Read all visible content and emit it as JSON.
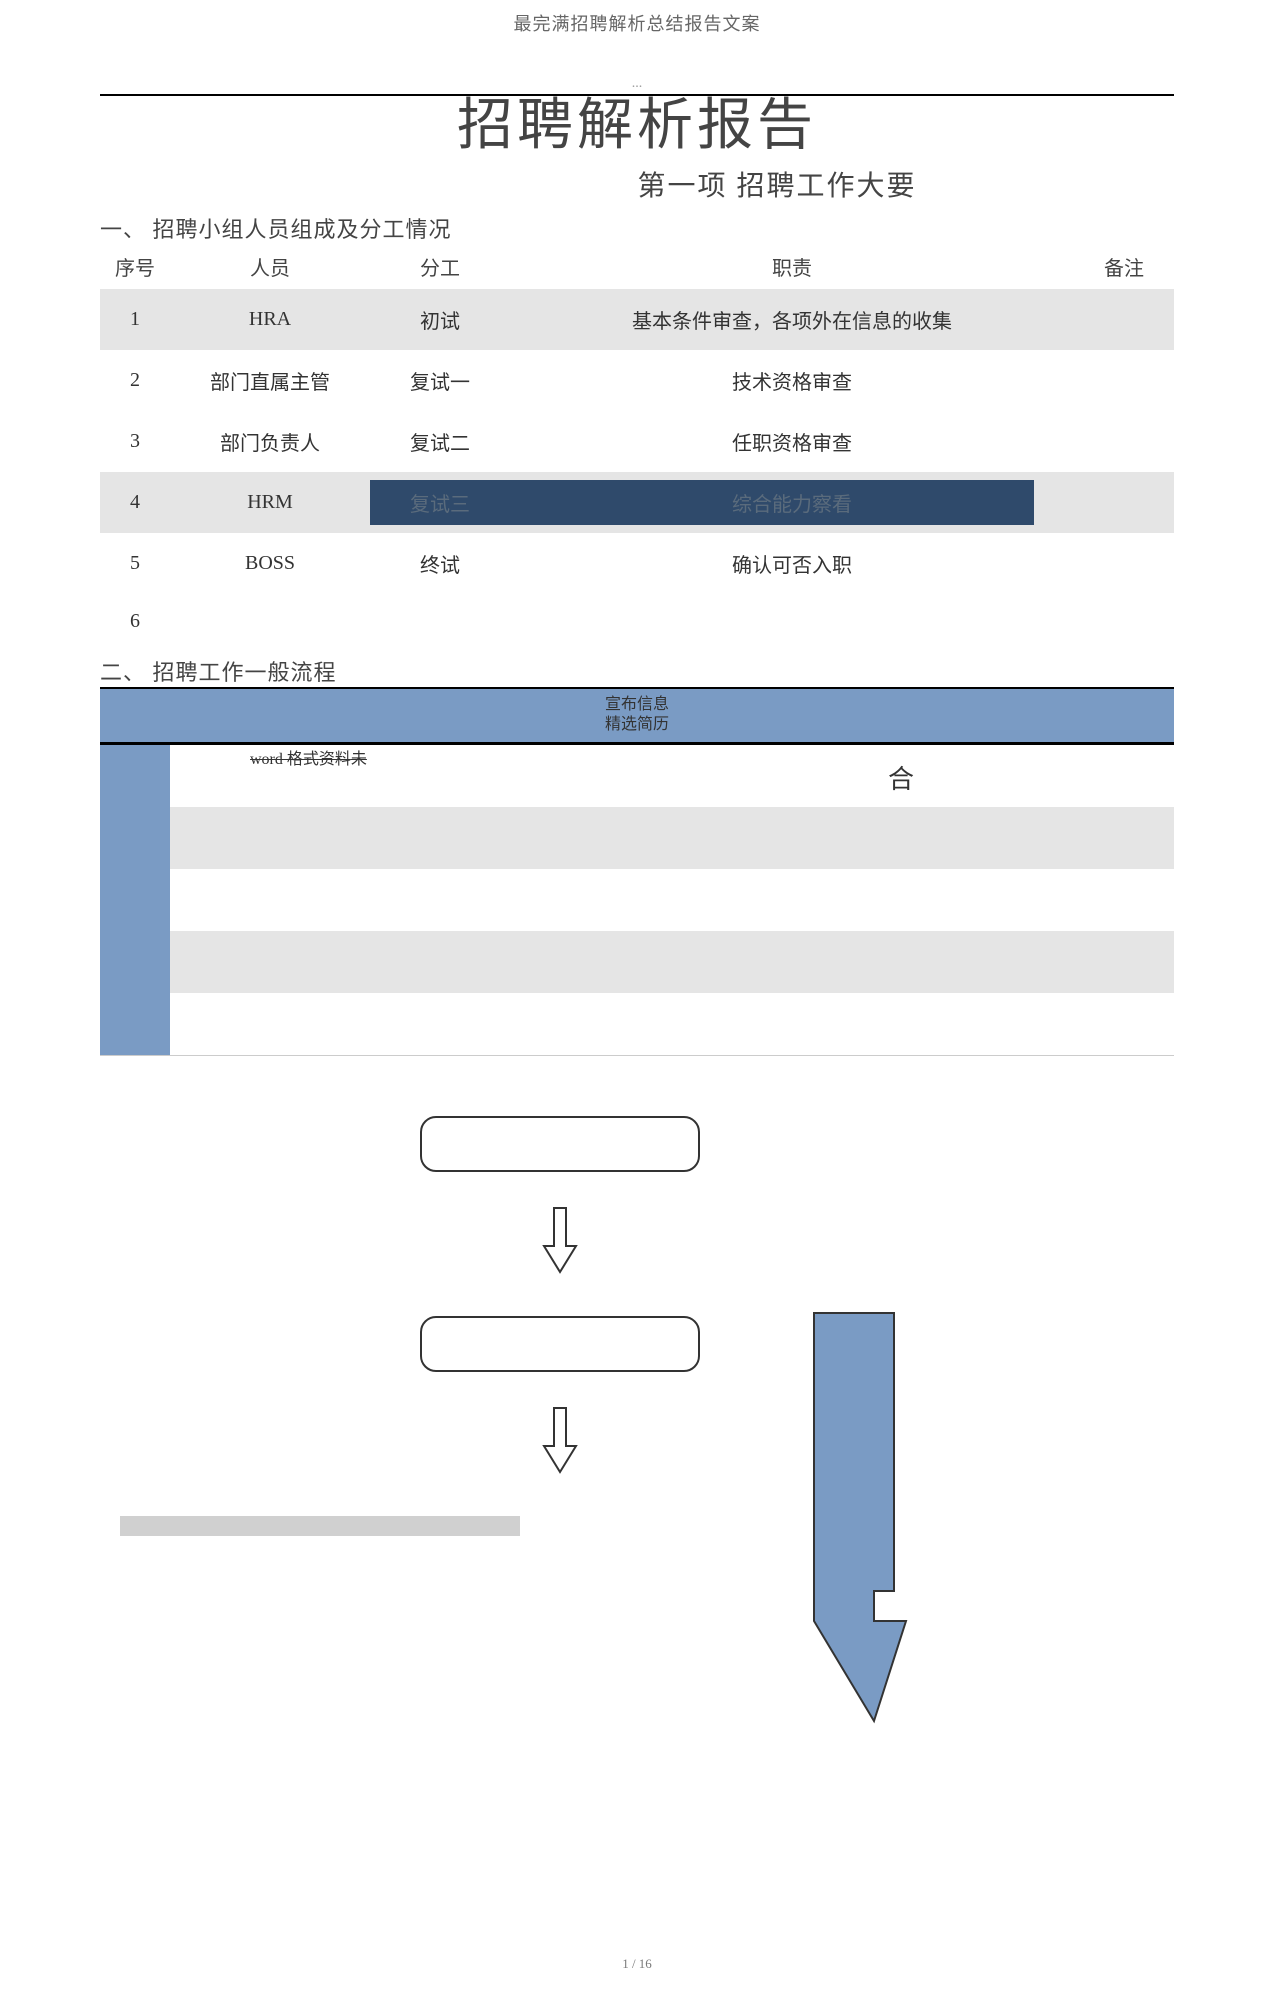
{
  "header": {
    "doc_title": "最完满招聘解析总结报告文案"
  },
  "title": {
    "ellipsis": "...",
    "main": "招聘解析报告",
    "section": "第一项  招聘工作大要"
  },
  "section1": {
    "heading": "一、  招聘小组人员组成及分工情况",
    "columns": {
      "seq": "序号",
      "person": "人员",
      "role": "分工",
      "duty": "职责",
      "note": "备注"
    },
    "rows": [
      {
        "seq": "1",
        "person": "HRA",
        "role": "初试",
        "duty": "基本条件审查，各项外在信息的收集",
        "note": "",
        "alt": true
      },
      {
        "seq": "2",
        "person": "部门直属主管",
        "role": "复试一",
        "duty": "技术资格审查",
        "note": "",
        "alt": false
      },
      {
        "seq": "3",
        "person": "部门负责人",
        "role": "复试二",
        "duty": "任职资格审查",
        "note": "",
        "alt": false
      },
      {
        "seq": "4",
        "person": "HRM",
        "role": "复试三",
        "duty": "综合能力察看",
        "note": "",
        "alt": true,
        "highlight": true
      },
      {
        "seq": "5",
        "person": "BOSS",
        "role": "终试",
        "duty": "确认可否入职",
        "note": "",
        "alt": false
      },
      {
        "seq": "6",
        "person": "",
        "role": "",
        "duty": "",
        "note": "",
        "alt": false
      }
    ]
  },
  "section2": {
    "heading": "二、  招聘工作一般流程",
    "flow_banner_line1": "宣布信息",
    "flow_banner_line2": "精选简历",
    "word_note": "word 格式资料",
    "word_note_suffix": "未",
    "he": "合"
  },
  "colors": {
    "banner_blue": "#7a9bc4",
    "highlight_dark": "#2f4a6b",
    "alt_gray": "#e5e5e5",
    "gray_bar": "#d0d0d0",
    "border": "#333333"
  },
  "footer": {
    "page": "1 / 16"
  }
}
